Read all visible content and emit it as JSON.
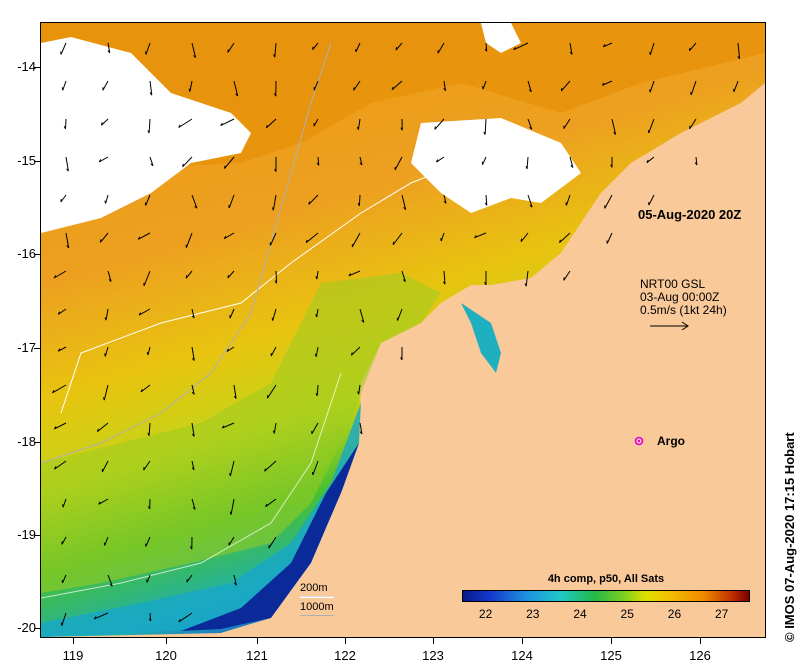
{
  "map": {
    "lat_ticks": [
      "-14",
      "-15",
      "-16",
      "-17",
      "-18",
      "-19",
      "-20"
    ],
    "lon_ticks": [
      "119",
      "120",
      "121",
      "122",
      "123",
      "124",
      "125",
      "126"
    ],
    "lat_range": [
      -20.1,
      -13.5
    ],
    "lon_range": [
      118.65,
      126.75
    ]
  },
  "annotations": {
    "image_time": "05-Aug-2020 20Z",
    "current_product": "NRT00 GSL",
    "current_time": "03-Aug 00:00Z",
    "current_scale": "0.5m/s (1kt 24h)",
    "argo_label": "Argo",
    "isobath_200": "200m",
    "isobath_1000": "1000m"
  },
  "colorbar": {
    "title": "4h comp, p50, All Sats",
    "ticks": [
      "22",
      "23",
      "24",
      "25",
      "26",
      "27"
    ],
    "range": [
      21.5,
      27.6
    ]
  },
  "credit": "© IMOS 07-Aug-2020 17:15 Hobart",
  "colors": {
    "land": "#f9c99a",
    "cloud": "#ffffff",
    "argo": "#e000e0"
  }
}
